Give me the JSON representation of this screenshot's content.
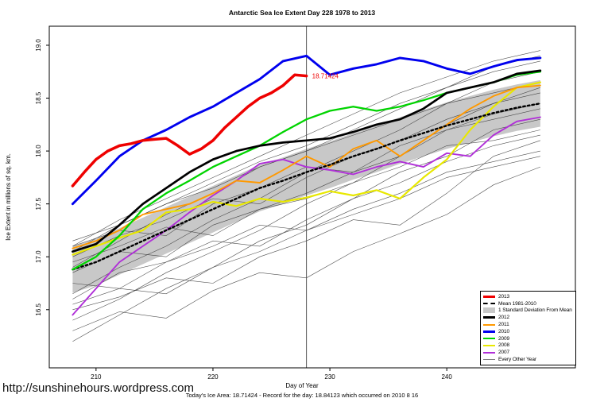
{
  "footer": {
    "note": "Today's Ice Area: 18.71424  - Record for the day: 18.84123 which occurred on 2010 8 16",
    "url": "http://sunshinehours.wordpress.com"
  },
  "chart_data": {
    "type": "line",
    "title": "Antarctic Sea Ice Extent Day 228 1978 to 2013",
    "xlabel": "Day of Year",
    "ylabel": "Ice Extent in millions of sq. km.",
    "xlim": [
      206,
      251
    ],
    "ylim": [
      15.95,
      19.18
    ],
    "x_ticks": [
      210,
      220,
      230,
      240
    ],
    "y_ticks": [
      16.5,
      17.0,
      17.5,
      18.0,
      18.5,
      19.0
    ],
    "grid": false,
    "legend_position": "bottom-right",
    "vline_x": 228,
    "annotation": {
      "x": 228,
      "y": 18.71,
      "text": "18.71424",
      "color": "#ee0000"
    },
    "x": [
      208,
      210,
      212,
      214,
      216,
      218,
      220,
      222,
      224,
      226,
      228,
      230,
      232,
      234,
      236,
      238,
      240,
      242,
      244,
      246,
      248
    ],
    "band": {
      "color": "#c8c8c8",
      "upper": [
        17.1,
        17.17,
        17.27,
        17.37,
        17.47,
        17.57,
        17.67,
        17.77,
        17.87,
        17.94,
        18.02,
        18.09,
        18.17,
        18.24,
        18.32,
        18.39,
        18.46,
        18.52,
        18.58,
        18.63,
        18.67
      ],
      "lower": [
        16.66,
        16.73,
        16.83,
        16.93,
        17.03,
        17.13,
        17.23,
        17.33,
        17.43,
        17.5,
        17.58,
        17.65,
        17.73,
        17.8,
        17.88,
        17.95,
        18.02,
        18.08,
        18.14,
        18.19,
        18.23
      ]
    },
    "series": [
      {
        "name": "2007",
        "color": "#b02fd8",
        "width": 1.9,
        "values": [
          16.45,
          16.7,
          16.95,
          17.1,
          17.25,
          17.42,
          17.58,
          17.72,
          17.88,
          17.92,
          17.85,
          17.82,
          17.78,
          17.85,
          17.9,
          17.85,
          17.98,
          17.95,
          18.15,
          18.28,
          18.32
        ]
      },
      {
        "name": "2008",
        "color": "#e8e800",
        "width": 2.2,
        "values": [
          17.02,
          17.1,
          17.18,
          17.25,
          17.42,
          17.45,
          17.52,
          17.48,
          17.55,
          17.52,
          17.56,
          17.62,
          17.58,
          17.63,
          17.55,
          17.75,
          17.92,
          18.2,
          18.42,
          18.6,
          18.65
        ]
      },
      {
        "name": "2011",
        "color": "#ff9900",
        "width": 1.9,
        "values": [
          17.08,
          17.15,
          17.25,
          17.4,
          17.45,
          17.5,
          17.6,
          17.72,
          17.7,
          17.82,
          17.95,
          17.85,
          18.02,
          18.1,
          17.95,
          18.1,
          18.25,
          18.4,
          18.52,
          18.6,
          18.62
        ]
      },
      {
        "name": "Mean 1981-2010",
        "color": "#000000",
        "width": 2.4,
        "dash": "2.5,3.2",
        "values": [
          16.88,
          16.95,
          17.05,
          17.15,
          17.25,
          17.35,
          17.45,
          17.55,
          17.65,
          17.72,
          17.8,
          17.87,
          17.95,
          18.02,
          18.1,
          18.17,
          18.24,
          18.3,
          18.36,
          18.41,
          18.45
        ]
      },
      {
        "name": "2009",
        "color": "#00d400",
        "width": 2.3,
        "values": [
          16.88,
          17.0,
          17.2,
          17.45,
          17.6,
          17.72,
          17.85,
          17.95,
          18.05,
          18.18,
          18.3,
          18.38,
          18.42,
          18.38,
          18.42,
          18.48,
          18.55,
          18.6,
          18.65,
          18.72,
          18.75
        ]
      },
      {
        "name": "2012",
        "color": "#000000",
        "width": 2.7,
        "values": [
          17.05,
          17.12,
          17.3,
          17.5,
          17.65,
          17.8,
          17.92,
          18.0,
          18.05,
          18.08,
          18.1,
          18.12,
          18.18,
          18.25,
          18.3,
          18.4,
          18.55,
          18.6,
          18.65,
          18.73,
          18.76
        ]
      },
      {
        "name": "2010",
        "color": "#0000ee",
        "width": 2.9,
        "values": [
          17.5,
          17.72,
          17.95,
          18.1,
          18.2,
          18.32,
          18.42,
          18.55,
          18.68,
          18.85,
          18.9,
          18.72,
          18.78,
          18.82,
          18.88,
          18.85,
          18.78,
          18.73,
          18.8,
          18.86,
          18.88
        ]
      },
      {
        "name": "2013",
        "color": "#ee0000",
        "width": 3.5,
        "x": [
          208,
          209,
          210,
          211,
          212,
          213,
          214,
          215,
          216,
          217,
          218,
          219,
          220,
          221,
          222,
          223,
          224,
          225,
          226,
          227,
          228
        ],
        "values": [
          17.67,
          17.8,
          17.92,
          18.0,
          18.05,
          18.07,
          18.1,
          18.11,
          18.12,
          18.05,
          17.97,
          18.02,
          18.1,
          18.22,
          18.32,
          18.42,
          18.5,
          18.55,
          18.62,
          18.72,
          18.71
        ]
      }
    ],
    "background": {
      "label": "Every Other Year",
      "color": "#3c3c3c",
      "width": 0.6,
      "x": [
        208,
        212,
        216,
        220,
        224,
        228,
        232,
        236,
        240,
        244,
        248
      ],
      "lines": [
        [
          16.3,
          16.48,
          16.42,
          16.68,
          16.85,
          16.8,
          17.05,
          17.22,
          17.4,
          17.68,
          17.85
        ],
        [
          16.5,
          16.62,
          16.8,
          16.75,
          17.0,
          17.15,
          17.35,
          17.3,
          17.6,
          17.95,
          18.1
        ],
        [
          16.6,
          16.85,
          16.95,
          17.15,
          17.1,
          17.35,
          17.55,
          17.8,
          17.95,
          18.2,
          18.3
        ],
        [
          16.75,
          16.7,
          16.95,
          17.1,
          17.3,
          17.25,
          17.45,
          17.6,
          17.8,
          17.9,
          18.0
        ],
        [
          16.85,
          17.05,
          17.0,
          17.3,
          17.45,
          17.6,
          17.8,
          17.95,
          18.2,
          18.35,
          18.45
        ],
        [
          16.95,
          17.1,
          17.28,
          17.2,
          17.45,
          17.55,
          17.7,
          17.85,
          18.05,
          18.1,
          18.2
        ],
        [
          17.0,
          17.2,
          17.35,
          17.55,
          17.5,
          17.75,
          17.95,
          18.1,
          18.3,
          18.45,
          18.55
        ],
        [
          17.05,
          17.3,
          17.5,
          17.7,
          17.9,
          18.05,
          18.25,
          18.45,
          18.6,
          18.8,
          18.9
        ],
        [
          17.1,
          17.25,
          17.2,
          17.5,
          17.65,
          17.85,
          17.8,
          18.05,
          18.2,
          18.3,
          18.4
        ],
        [
          16.4,
          16.6,
          16.85,
          17.05,
          17.25,
          17.5,
          17.7,
          17.95,
          18.25,
          18.45,
          18.6
        ],
        [
          16.65,
          16.9,
          17.1,
          17.35,
          17.55,
          17.8,
          18.0,
          18.2,
          18.45,
          18.65,
          18.75
        ],
        [
          16.9,
          17.15,
          17.4,
          17.6,
          17.85,
          18.0,
          18.2,
          18.4,
          18.6,
          18.75,
          18.85
        ],
        [
          17.15,
          17.3,
          17.5,
          17.65,
          17.85,
          18.0,
          18.15,
          18.3,
          18.45,
          18.55,
          18.65
        ],
        [
          16.55,
          16.7,
          16.65,
          16.9,
          17.05,
          17.25,
          17.4,
          17.55,
          17.75,
          17.85,
          17.95
        ],
        [
          16.2,
          16.45,
          16.7,
          16.9,
          17.15,
          17.3,
          17.55,
          17.7,
          17.9,
          18.05,
          18.15
        ],
        [
          17.1,
          17.35,
          17.55,
          17.75,
          17.95,
          18.15,
          18.35,
          18.55,
          18.7,
          18.85,
          18.95
        ]
      ]
    },
    "legend": [
      {
        "label": "2013",
        "color": "#ee0000",
        "width": 3
      },
      {
        "label": "Mean 1981-2010",
        "color": "#000000",
        "width": 2,
        "dash": true
      },
      {
        "label": "1 Standard Deviation From Mean",
        "color": "#c8c8c8",
        "type": "band"
      },
      {
        "label": "2012",
        "color": "#000000",
        "width": 3
      },
      {
        "label": "2011",
        "color": "#ff9900",
        "width": 2
      },
      {
        "label": "2010",
        "color": "#0000ee",
        "width": 3
      },
      {
        "label": "2009",
        "color": "#00d400",
        "width": 2
      },
      {
        "label": "2008",
        "color": "#e8e800",
        "width": 2
      },
      {
        "label": "2007",
        "color": "#b02fd8",
        "width": 2
      },
      {
        "label": "Every Other Year",
        "color": "#808080",
        "width": 1
      }
    ]
  }
}
